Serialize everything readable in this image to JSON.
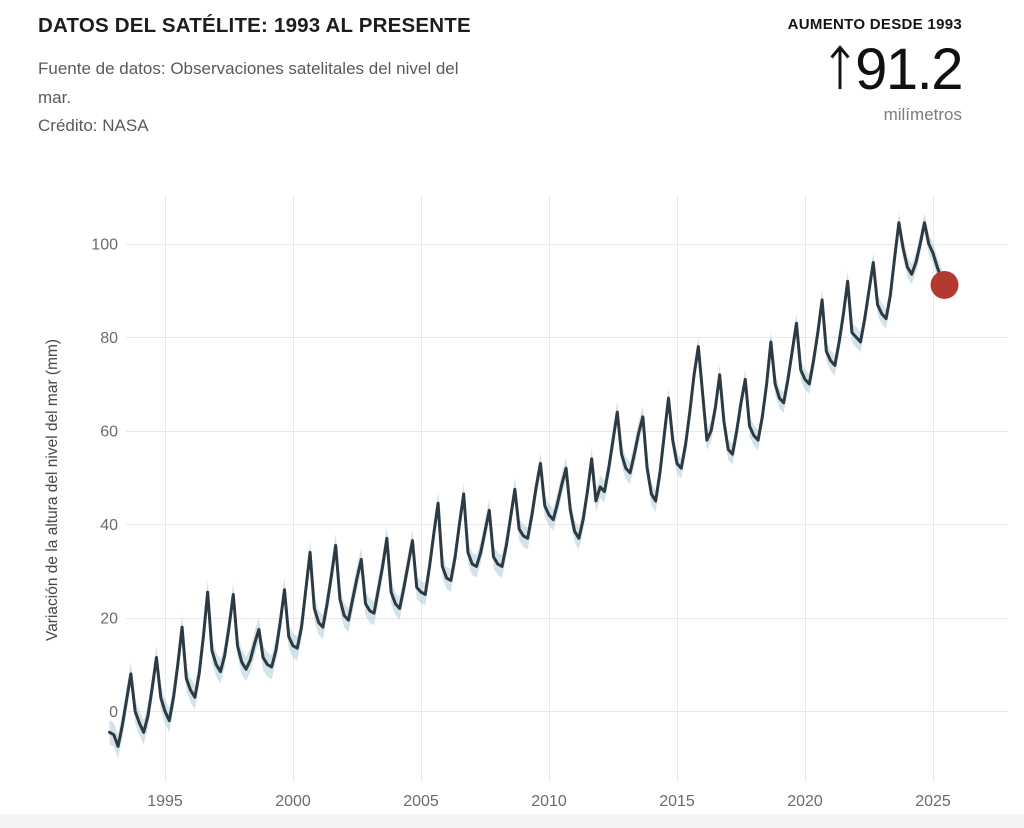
{
  "header": {
    "title": "DATOS DEL SATÉLITE: 1993 AL PRESENTE",
    "source_lines": [
      "Fuente de datos: Observaciones satelitales del nivel del",
      "mar."
    ],
    "credit": "Crédito: NASA"
  },
  "stat": {
    "label": "AUMENTO DESDE 1993",
    "value": "91.2",
    "unit": "milímetros",
    "arrow_icon": "up-arrow"
  },
  "chart_data": {
    "type": "line",
    "title": "",
    "xlabel": "",
    "ylabel": "Variación de la altura del nivel del mar (mm)",
    "legend": "none",
    "grid": true,
    "xticks": [
      1995,
      2000,
      2005,
      2010,
      2015,
      2020,
      2025
    ],
    "yticks": [
      0,
      20,
      40,
      60,
      80,
      100
    ],
    "xlim": [
      1992.7,
      2026.5
    ],
    "ylim": [
      -15,
      110
    ],
    "x_start": 1992.8333,
    "x_step_years": 0.16667,
    "values": [
      -4.5,
      -5,
      -7.5,
      -3,
      2.5,
      8,
      0,
      -2.5,
      -4.5,
      -1,
      5,
      11.5,
      3,
      0,
      -2,
      3,
      10,
      18,
      7,
      4.5,
      3,
      8,
      16,
      25.5,
      13,
      10,
      8.5,
      12,
      18,
      25,
      14,
      10.5,
      9,
      11,
      14.5,
      17.5,
      11.5,
      10,
      9.5,
      13,
      19,
      26,
      16,
      14,
      13.5,
      18,
      26,
      34,
      22,
      19,
      18,
      23,
      29,
      35.5,
      24,
      20.5,
      19.5,
      24,
      28.5,
      32.5,
      23,
      21.5,
      21,
      26,
      31,
      37,
      25.5,
      23,
      22,
      26.5,
      31.5,
      36.5,
      26.5,
      25.5,
      25,
      31,
      38,
      44.5,
      31,
      28.5,
      28,
      33,
      40,
      46.5,
      34,
      31.5,
      31,
      34,
      38.5,
      43,
      33,
      31.5,
      31,
      35.5,
      41.5,
      47.5,
      39,
      37.5,
      37,
      42,
      48,
      53,
      44,
      42,
      41,
      44.5,
      48.5,
      52,
      43,
      38.5,
      37,
      41,
      47,
      54,
      45,
      48,
      47,
      52,
      58,
      64,
      55,
      52,
      51,
      55,
      59.5,
      63,
      52,
      46.5,
      45,
      51,
      59,
      67,
      58,
      53,
      52,
      57,
      64,
      72,
      78,
      68,
      58,
      60,
      65,
      72,
      62,
      56,
      55,
      60,
      66,
      71,
      61,
      59,
      58,
      63,
      70,
      79,
      70,
      67,
      66,
      71,
      77,
      83,
      73,
      71,
      70,
      75,
      81,
      88,
      77,
      75,
      74,
      79,
      85,
      92,
      81,
      80,
      79,
      84,
      90,
      96,
      87,
      85,
      84,
      89,
      97,
      104.5,
      99,
      95,
      93.5,
      96,
      100,
      104.5,
      100,
      98,
      95,
      92.5
    ],
    "band_start_year": 1993,
    "band_halfwidth_mm_per_year": [
      2.6,
      2.6,
      2.6,
      2.6,
      2.6,
      2.6,
      2.6,
      2.6,
      2.6,
      2.6,
      2.6,
      2.4,
      2.4,
      2.4,
      2.4,
      2.4,
      2.4,
      2.4,
      2.4,
      2.4,
      2.4,
      2.4,
      2.2,
      2.2,
      2.2,
      2.2,
      2.2,
      2.2,
      2.2,
      2.2,
      2.2,
      2.2,
      2.2
    ],
    "latest_point": {
      "x": 2025.45,
      "y": 91.2
    },
    "colors": {
      "line": "#2c3a44",
      "band": "rgba(183,208,220,0.6)",
      "dot": "#b23a31",
      "grid": "#e8e8e8",
      "tick": "#6b6b6b"
    }
  }
}
